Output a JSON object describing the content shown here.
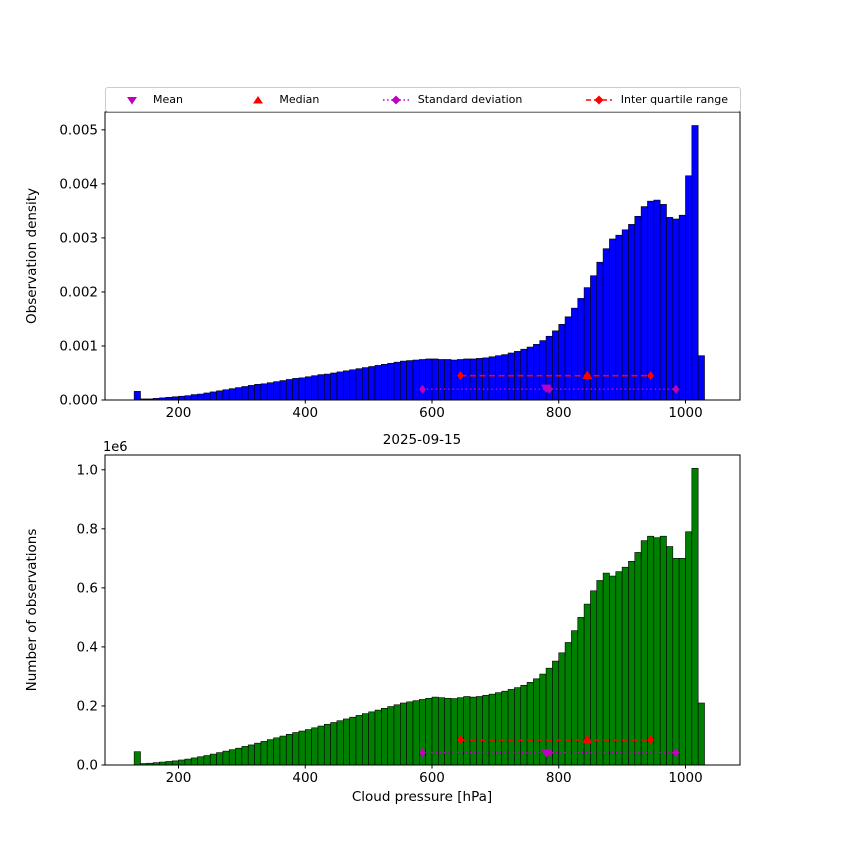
{
  "figure": {
    "title": "2025-09-15",
    "xlabel": "Cloud pressure [hPa]",
    "background": "#ffffff"
  },
  "legend": {
    "items": [
      {
        "label": "Mean",
        "marker": "triangle-down",
        "color": "#bf00bf"
      },
      {
        "label": "Median",
        "marker": "triangle-up",
        "color": "#ff0000"
      },
      {
        "label": "Standard deviation",
        "marker": "diamond-dotted-line",
        "color": "#bf00bf"
      },
      {
        "label": "Inter quartile range",
        "marker": "diamond-dashed-line",
        "color": "#ff0000"
      }
    ]
  },
  "chart_data": [
    {
      "type": "bar",
      "panel": "top",
      "ylabel": "Observation density",
      "bar_color": "#0000ff",
      "edge_color": "#000000",
      "xlim": [
        84,
        1086
      ],
      "ylim": [
        0,
        0.00533
      ],
      "xticks": [
        200,
        400,
        600,
        800,
        1000
      ],
      "xtick_labels": [
        "200",
        "400",
        "600",
        "800",
        "1000"
      ],
      "yticks": [
        0,
        0.001,
        0.002,
        0.003,
        0.004,
        0.005
      ],
      "ytick_labels": [
        "0.000",
        "0.001",
        "0.002",
        "0.003",
        "0.004",
        "0.005"
      ],
      "bin_start": 130,
      "bin_width": 10,
      "values": [
        0.00016,
        2e-05,
        2e-05,
        3e-05,
        4e-05,
        5e-05,
        6e-05,
        7e-05,
        8e-05,
        0.0001,
        0.00011,
        0.00013,
        0.00015,
        0.00017,
        0.00019,
        0.00021,
        0.00023,
        0.00025,
        0.00027,
        0.00029,
        0.0003,
        0.00032,
        0.00034,
        0.00036,
        0.00038,
        0.0004,
        0.00041,
        0.00043,
        0.00045,
        0.00047,
        0.00048,
        0.0005,
        0.00052,
        0.00054,
        0.00056,
        0.00058,
        0.0006,
        0.00062,
        0.00064,
        0.00066,
        0.00068,
        0.0007,
        0.00072,
        0.00073,
        0.00074,
        0.00075,
        0.00076,
        0.00076,
        0.00075,
        0.00075,
        0.00074,
        0.00075,
        0.00076,
        0.00076,
        0.00077,
        0.00078,
        0.0008,
        0.00082,
        0.00084,
        0.00087,
        0.0009,
        0.00094,
        0.00098,
        0.00103,
        0.0011,
        0.00118,
        0.00128,
        0.0014,
        0.00154,
        0.0017,
        0.00188,
        0.00208,
        0.0023,
        0.00255,
        0.0028,
        0.00298,
        0.00305,
        0.00315,
        0.00325,
        0.0034,
        0.00358,
        0.00368,
        0.0037,
        0.00362,
        0.00338,
        0.00335,
        0.00342,
        0.00415,
        0.00508,
        0.00082
      ],
      "markers": {
        "mean": {
          "x": 780,
          "y": 0.00022
        },
        "median": {
          "x": 845,
          "y": 0.00045
        },
        "std": {
          "low": 585,
          "center": 785,
          "high": 985,
          "y": 0.0002
        },
        "iqr": {
          "low": 645,
          "center": 845,
          "high": 945,
          "y": 0.00045
        }
      }
    },
    {
      "type": "bar",
      "panel": "bottom",
      "ylabel": "Number of observations",
      "offset_text": "1e6",
      "bar_color": "#008000",
      "edge_color": "#000000",
      "xlim": [
        84,
        1086
      ],
      "ylim": [
        0,
        1.05
      ],
      "xticks": [
        200,
        400,
        600,
        800,
        1000
      ],
      "xtick_labels": [
        "200",
        "400",
        "600",
        "800",
        "1000"
      ],
      "yticks": [
        0,
        0.2,
        0.4,
        0.6,
        0.8,
        1.0
      ],
      "ytick_labels": [
        "0.0",
        "0.2",
        "0.4",
        "0.6",
        "0.8",
        "1.0"
      ],
      "bin_start": 130,
      "bin_width": 10,
      "values_unit": "1e6",
      "values": [
        0.045,
        0.005,
        0.006,
        0.008,
        0.01,
        0.012,
        0.014,
        0.017,
        0.02,
        0.024,
        0.028,
        0.032,
        0.037,
        0.042,
        0.047,
        0.052,
        0.057,
        0.063,
        0.068,
        0.074,
        0.08,
        0.086,
        0.092,
        0.098,
        0.104,
        0.11,
        0.115,
        0.12,
        0.126,
        0.132,
        0.138,
        0.144,
        0.15,
        0.156,
        0.162,
        0.168,
        0.174,
        0.18,
        0.186,
        0.192,
        0.198,
        0.204,
        0.21,
        0.214,
        0.218,
        0.222,
        0.226,
        0.23,
        0.228,
        0.226,
        0.225,
        0.228,
        0.232,
        0.23,
        0.232,
        0.236,
        0.24,
        0.245,
        0.25,
        0.256,
        0.262,
        0.27,
        0.28,
        0.292,
        0.308,
        0.328,
        0.352,
        0.38,
        0.415,
        0.455,
        0.5,
        0.545,
        0.59,
        0.625,
        0.65,
        0.64,
        0.655,
        0.67,
        0.69,
        0.72,
        0.76,
        0.775,
        0.77,
        0.775,
        0.74,
        0.7,
        0.7,
        0.79,
        1.005,
        0.21
      ],
      "markers": {
        "mean": {
          "x": 780,
          "y": 0.042
        },
        "median": {
          "x": 845,
          "y": 0.085
        },
        "std": {
          "low": 585,
          "center": 785,
          "high": 985,
          "y": 0.042
        },
        "iqr": {
          "low": 645,
          "center": 845,
          "high": 945,
          "y": 0.085
        }
      }
    }
  ]
}
